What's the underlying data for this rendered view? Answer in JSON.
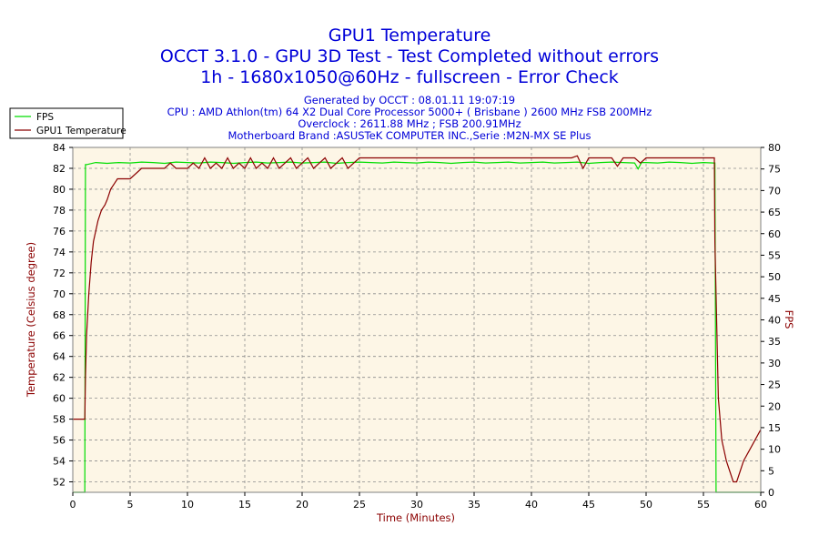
{
  "header": {
    "title_lines": [
      "GPU1 Temperature",
      "OCCT 3.1.0 - GPU 3D Test - Test Completed without errors",
      "1h - 1680x1050@60Hz - fullscreen - Error Check"
    ],
    "info_lines": [
      "Generated by OCCT : 08.01.11 19:07:19",
      "CPU : AMD Athlon(tm) 64 X2 Dual Core Processor 5000+ ( Brisbane ) 2600 MHz FSB 200MHz",
      "Overclock : 2611.88 MHz ; FSB 200.91MHz",
      "Motherboard Brand :ASUSTeK COMPUTER INC.,Serie :M2N-MX SE Plus"
    ]
  },
  "colors": {
    "plot_background": "#fdf6e6",
    "grid": "#8c8c8c",
    "fps": "#00dd00",
    "temperature": "#8b0000",
    "title_text": "#0000d8",
    "axis_title_text": "#8b0000"
  },
  "chart_data": {
    "type": "line",
    "title": "GPU1 Temperature",
    "xlabel": "Time (Minutes)",
    "ylabel": "Temperature (Celsius degree)",
    "y2label": "FPS",
    "xlim": [
      0,
      60
    ],
    "ylim": [
      51,
      84
    ],
    "y2lim": [
      0,
      80
    ],
    "xticks": [
      0,
      5,
      10,
      15,
      20,
      25,
      30,
      35,
      40,
      45,
      50,
      55,
      60
    ],
    "yticks": [
      52,
      54,
      56,
      58,
      60,
      62,
      64,
      66,
      68,
      70,
      72,
      74,
      76,
      78,
      80,
      82,
      84
    ],
    "y2ticks": [
      0,
      5,
      10,
      15,
      20,
      25,
      30,
      35,
      40,
      45,
      50,
      55,
      60,
      65,
      70,
      75,
      80
    ],
    "grid": true,
    "legend_position": "top-left",
    "series": [
      {
        "name": "FPS",
        "axis": "right",
        "color": "#00dd00",
        "x": [
          0.0,
          1.05,
          1.1,
          1.2,
          2,
          3,
          4,
          5,
          6,
          7,
          8,
          9,
          10,
          11,
          12,
          13,
          14,
          15,
          16,
          17,
          18,
          19,
          20,
          21,
          22,
          23,
          24,
          25,
          26,
          27,
          28,
          29,
          30,
          31,
          32,
          33,
          34,
          35,
          36,
          37,
          38,
          39,
          40,
          41,
          42,
          43,
          44,
          45,
          46,
          47,
          48,
          49,
          49.3,
          49.6,
          50,
          51,
          52,
          53,
          54,
          55,
          55.9,
          56.0,
          56.1,
          57,
          58,
          59,
          60
        ],
        "y": [
          0,
          0,
          76,
          76,
          76.5,
          76.3,
          76.5,
          76.4,
          76.6,
          76.5,
          76.3,
          76.6,
          76.5,
          76.4,
          76.6,
          76.5,
          76.3,
          76.5,
          76.6,
          76.4,
          76.5,
          76.6,
          76.4,
          76.5,
          76.6,
          76.3,
          76.5,
          76.6,
          76.5,
          76.4,
          76.6,
          76.5,
          76.4,
          76.6,
          76.5,
          76.3,
          76.5,
          76.6,
          76.4,
          76.5,
          76.6,
          76.4,
          76.5,
          76.6,
          76.4,
          76.5,
          76.6,
          76.3,
          76.5,
          76.6,
          76.5,
          76.4,
          75,
          76.5,
          76.5,
          76.4,
          76.6,
          76.5,
          76.3,
          76.5,
          76.4,
          76.4,
          0,
          0,
          0,
          0,
          0
        ]
      },
      {
        "name": "GPU1 Temperature",
        "axis": "left",
        "color": "#8b0000",
        "x": [
          0.0,
          1.05,
          1.1,
          1.2,
          1.4,
          1.6,
          1.8,
          2.0,
          2.2,
          2.5,
          2.8,
          3.0,
          3.3,
          3.6,
          3.9,
          4.0,
          4.2,
          4.5,
          5.0,
          6,
          7,
          8,
          8.5,
          9,
          10,
          10.5,
          11,
          11.5,
          12,
          12.5,
          13,
          13.5,
          14,
          14.5,
          15,
          15.5,
          16,
          16.5,
          17,
          17.5,
          18,
          18.5,
          19,
          19.5,
          20,
          20.5,
          21,
          21.5,
          22,
          22.5,
          23,
          23.5,
          24,
          24.5,
          25,
          26,
          27,
          28,
          29,
          30,
          32,
          34,
          36,
          38,
          40,
          42,
          43.5,
          44,
          44.5,
          45,
          46,
          47,
          47.5,
          48,
          49,
          49.5,
          50,
          52,
          54,
          55,
          55.95,
          56.0,
          56.3,
          56.6,
          57.0,
          57.3,
          57.6,
          57.9,
          58.2,
          58.5,
          59.0,
          59.5,
          60.0
        ],
        "y": [
          58,
          58,
          62,
          66,
          70,
          73,
          75,
          76,
          77,
          78,
          78.5,
          79,
          80,
          80.5,
          81,
          81,
          81,
          81,
          81,
          82,
          82,
          82,
          82.5,
          82,
          82,
          82.5,
          82,
          83,
          82,
          82.5,
          82,
          83,
          82,
          82.5,
          82,
          83,
          82,
          82.5,
          82,
          83,
          82,
          82.5,
          83,
          82,
          82.5,
          83,
          82,
          82.5,
          83,
          82,
          82.5,
          83,
          82,
          82.5,
          83,
          83,
          83,
          83,
          83,
          83,
          83,
          83,
          83,
          83,
          83,
          83,
          83,
          83.2,
          82,
          83,
          83,
          83,
          82.2,
          83,
          83,
          82.5,
          83,
          83,
          83,
          83,
          83,
          75,
          60,
          56,
          54,
          53,
          52,
          52,
          53,
          54,
          55,
          56,
          57
        ]
      }
    ]
  }
}
